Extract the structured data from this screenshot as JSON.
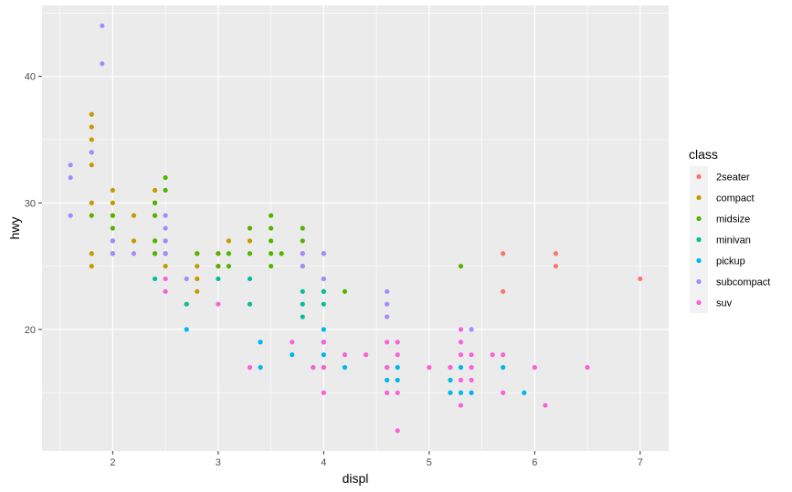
{
  "chart_data": {
    "type": "scatter",
    "xlabel": "displ",
    "ylabel": "hwy",
    "xlim": [
      1.33,
      7.27
    ],
    "ylim": [
      10.4,
      45.6
    ],
    "x_ticks": [
      2,
      3,
      4,
      5,
      6,
      7
    ],
    "y_ticks": [
      20,
      30,
      40
    ],
    "grid": true,
    "legend": {
      "title": "class",
      "placement": "right",
      "entries": [
        "2seater",
        "compact",
        "midsize",
        "minivan",
        "pickup",
        "subcompact",
        "suv"
      ]
    },
    "colors": {
      "2seater": "#F8766D",
      "compact": "#C49A00",
      "midsize": "#53B400",
      "minivan": "#00C094",
      "pickup": "#00B6EB",
      "subcompact": "#A58AFF",
      "suv": "#FB61D7"
    },
    "panel_background": "#EBEBEB",
    "series": [
      {
        "name": "2seater",
        "points": [
          [
            5.7,
            26
          ],
          [
            5.7,
            23
          ],
          [
            6.2,
            26
          ],
          [
            6.2,
            25
          ],
          [
            7.0,
            24
          ]
        ]
      },
      {
        "name": "compact",
        "points": [
          [
            1.8,
            37
          ],
          [
            1.8,
            36
          ],
          [
            1.8,
            35
          ],
          [
            1.8,
            34
          ],
          [
            1.8,
            33
          ],
          [
            1.8,
            30
          ],
          [
            1.8,
            26
          ],
          [
            1.8,
            25
          ],
          [
            2.0,
            31
          ],
          [
            2.0,
            30
          ],
          [
            2.0,
            29
          ],
          [
            2.2,
            29
          ],
          [
            2.2,
            27
          ],
          [
            2.4,
            31
          ],
          [
            2.4,
            30
          ],
          [
            2.4,
            29
          ],
          [
            2.4,
            27
          ],
          [
            2.4,
            26
          ],
          [
            2.5,
            27
          ],
          [
            2.5,
            25
          ],
          [
            2.8,
            26
          ],
          [
            2.8,
            25
          ],
          [
            2.8,
            24
          ],
          [
            2.8,
            23
          ],
          [
            3.0,
            26
          ],
          [
            3.0,
            25
          ],
          [
            3.1,
            27
          ],
          [
            3.3,
            27
          ]
        ]
      },
      {
        "name": "midsize",
        "points": [
          [
            1.8,
            29
          ],
          [
            2.0,
            29
          ],
          [
            2.0,
            28
          ],
          [
            2.0,
            27
          ],
          [
            2.0,
            26
          ],
          [
            2.4,
            30
          ],
          [
            2.4,
            29
          ],
          [
            2.4,
            27
          ],
          [
            2.4,
            26
          ],
          [
            2.5,
            32
          ],
          [
            2.5,
            31
          ],
          [
            2.5,
            26
          ],
          [
            2.8,
            26
          ],
          [
            3.0,
            26
          ],
          [
            3.0,
            25
          ],
          [
            3.1,
            26
          ],
          [
            3.1,
            25
          ],
          [
            3.3,
            28
          ],
          [
            3.3,
            26
          ],
          [
            3.5,
            29
          ],
          [
            3.5,
            28
          ],
          [
            3.5,
            27
          ],
          [
            3.5,
            26
          ],
          [
            3.5,
            25
          ],
          [
            3.6,
            26
          ],
          [
            3.8,
            28
          ],
          [
            3.8,
            27
          ],
          [
            3.8,
            26
          ],
          [
            3.8,
            25
          ],
          [
            4.0,
            26
          ],
          [
            4.0,
            23
          ],
          [
            4.2,
            23
          ],
          [
            5.3,
            25
          ]
        ]
      },
      {
        "name": "minivan",
        "points": [
          [
            2.4,
            24
          ],
          [
            2.7,
            22
          ],
          [
            3.0,
            24
          ],
          [
            3.3,
            24
          ],
          [
            3.3,
            22
          ],
          [
            3.8,
            23
          ],
          [
            3.8,
            22
          ],
          [
            3.8,
            21
          ],
          [
            4.0,
            24
          ],
          [
            4.0,
            23
          ],
          [
            4.0,
            22
          ]
        ]
      },
      {
        "name": "pickup",
        "points": [
          [
            2.7,
            20
          ],
          [
            3.4,
            19
          ],
          [
            3.4,
            17
          ],
          [
            3.7,
            18
          ],
          [
            3.9,
            17
          ],
          [
            4.0,
            20
          ],
          [
            4.0,
            19
          ],
          [
            4.0,
            18
          ],
          [
            4.0,
            17
          ],
          [
            4.2,
            17
          ],
          [
            4.6,
            17
          ],
          [
            4.6,
            16
          ],
          [
            4.7,
            17
          ],
          [
            4.7,
            16
          ],
          [
            5.2,
            17
          ],
          [
            5.2,
            16
          ],
          [
            5.2,
            15
          ],
          [
            5.3,
            17
          ],
          [
            5.3,
            15
          ],
          [
            5.4,
            15
          ],
          [
            5.7,
            17
          ],
          [
            5.9,
            15
          ]
        ]
      },
      {
        "name": "subcompact",
        "points": [
          [
            1.6,
            33
          ],
          [
            1.6,
            32
          ],
          [
            1.6,
            29
          ],
          [
            1.8,
            34
          ],
          [
            1.9,
            44
          ],
          [
            1.9,
            41
          ],
          [
            2.0,
            27
          ],
          [
            2.0,
            26
          ],
          [
            2.2,
            26
          ],
          [
            2.5,
            29
          ],
          [
            2.5,
            28
          ],
          [
            2.5,
            27
          ],
          [
            2.5,
            26
          ],
          [
            2.7,
            24
          ],
          [
            3.8,
            26
          ],
          [
            3.8,
            25
          ],
          [
            4.0,
            26
          ],
          [
            4.0,
            24
          ],
          [
            4.6,
            23
          ],
          [
            4.6,
            22
          ],
          [
            4.6,
            21
          ],
          [
            5.4,
            20
          ]
        ]
      },
      {
        "name": "suv",
        "points": [
          [
            2.5,
            24
          ],
          [
            2.5,
            23
          ],
          [
            3.0,
            22
          ],
          [
            3.3,
            17
          ],
          [
            3.7,
            19
          ],
          [
            3.9,
            17
          ],
          [
            4.0,
            19
          ],
          [
            4.0,
            17
          ],
          [
            4.0,
            15
          ],
          [
            4.2,
            18
          ],
          [
            4.4,
            18
          ],
          [
            4.6,
            19
          ],
          [
            4.6,
            17
          ],
          [
            4.6,
            15
          ],
          [
            4.7,
            19
          ],
          [
            4.7,
            18
          ],
          [
            4.7,
            15
          ],
          [
            4.7,
            12
          ],
          [
            5.0,
            17
          ],
          [
            5.2,
            17
          ],
          [
            5.3,
            20
          ],
          [
            5.3,
            19
          ],
          [
            5.3,
            18
          ],
          [
            5.3,
            16
          ],
          [
            5.3,
            14
          ],
          [
            5.4,
            18
          ],
          [
            5.4,
            17
          ],
          [
            5.4,
            16
          ],
          [
            5.6,
            18
          ],
          [
            5.7,
            18
          ],
          [
            5.7,
            15
          ],
          [
            6.0,
            17
          ],
          [
            6.1,
            14
          ],
          [
            6.5,
            17
          ]
        ]
      }
    ]
  }
}
